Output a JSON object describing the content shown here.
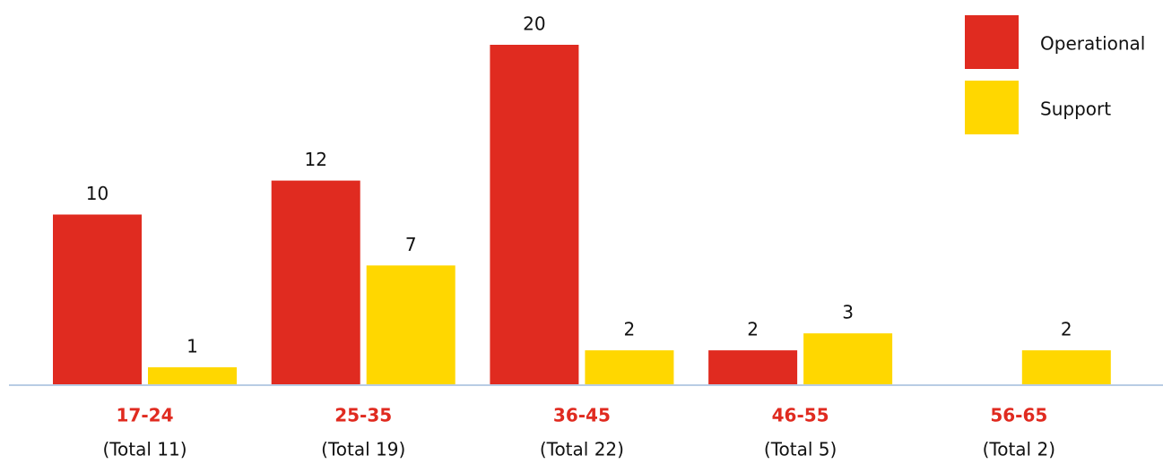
{
  "chart_data": {
    "type": "bar",
    "categories": [
      "17-24",
      "25-35",
      "36-45",
      "46-55",
      "56-65"
    ],
    "category_notes": [
      "(Total 11)",
      "(Total 19)",
      "(Total 22)",
      "(Total 5)",
      "(Total 2)"
    ],
    "series": [
      {
        "name": "Operational",
        "color": "#e02b20",
        "values": [
          10,
          12,
          20,
          2,
          null
        ]
      },
      {
        "name": "Support",
        "color": "#ffd700",
        "values": [
          1,
          7,
          2,
          3,
          2
        ]
      }
    ],
    "ylim": [
      0,
      20
    ],
    "legend": "top-right"
  }
}
